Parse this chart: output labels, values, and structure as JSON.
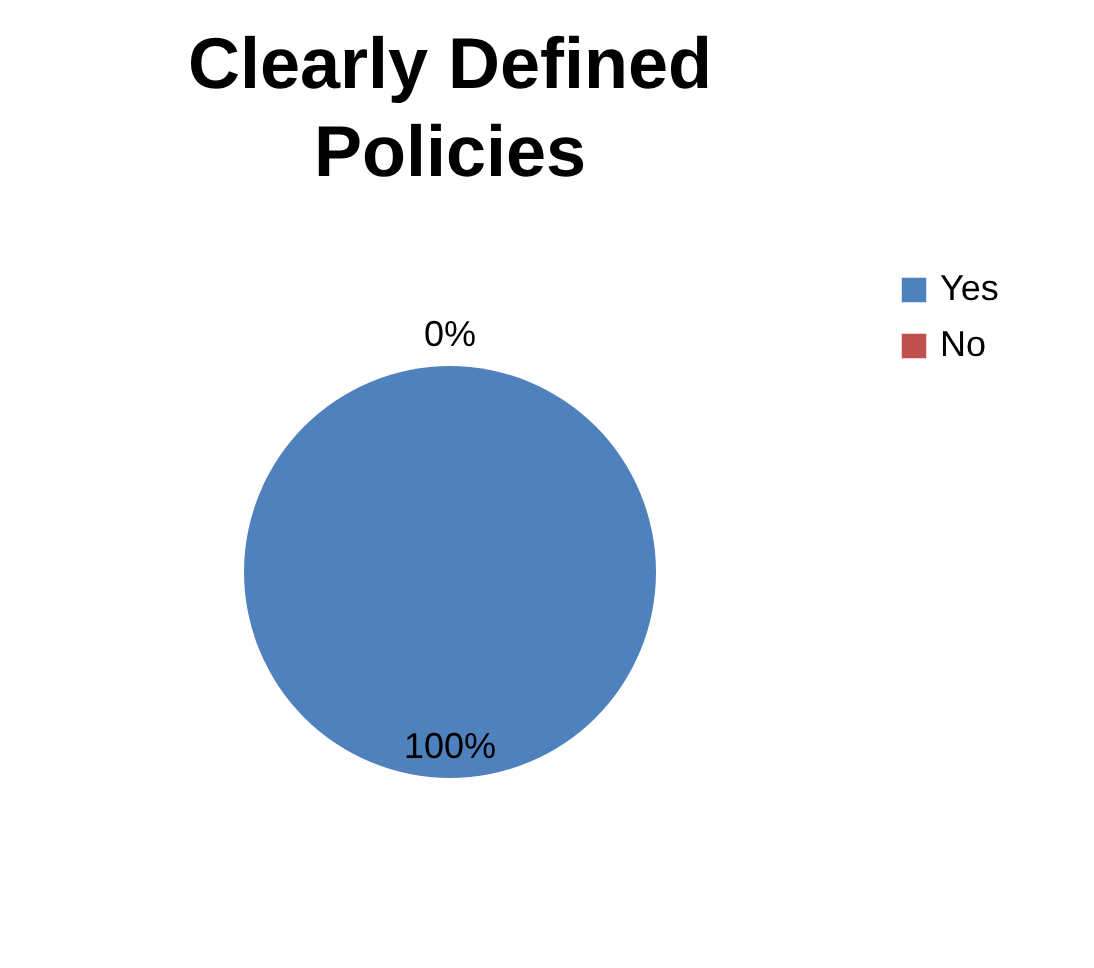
{
  "chart_data": {
    "type": "pie",
    "title": "Clearly Defined\nPolicies",
    "categories": [
      "Yes",
      "No"
    ],
    "values": [
      100,
      0
    ],
    "colors": [
      "#4f81bd",
      "#c0504d"
    ],
    "value_labels": [
      "100%",
      "0%"
    ],
    "legend": "right"
  }
}
